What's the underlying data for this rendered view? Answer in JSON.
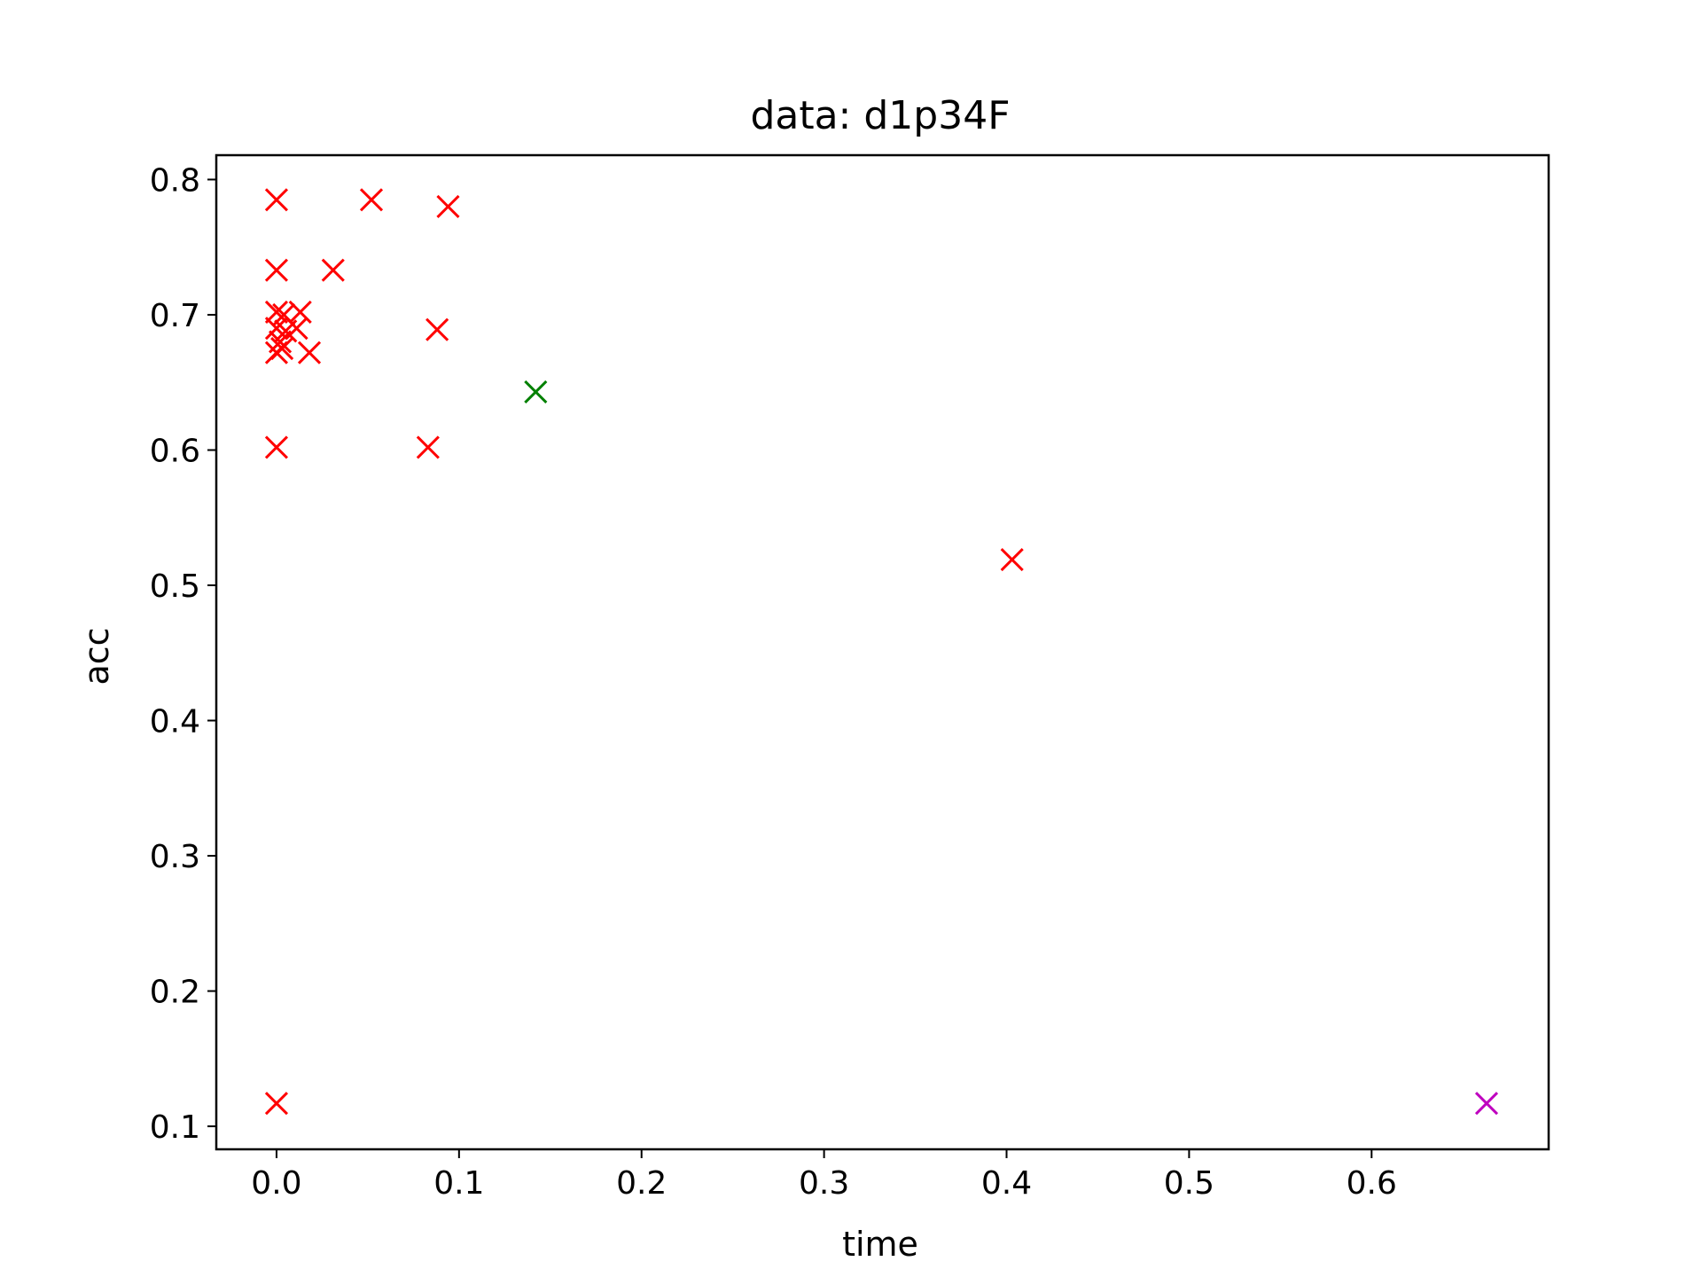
{
  "chart_data": {
    "type": "scatter",
    "title": "data: d1p34F",
    "xlabel": "time",
    "ylabel": "acc",
    "xlim": [
      -0.033,
      0.697
    ],
    "ylim": [
      0.083,
      0.818
    ],
    "xticks": [
      0.0,
      0.1,
      0.2,
      0.3,
      0.4,
      0.5,
      0.6
    ],
    "xtick_labels": [
      "0.0",
      "0.1",
      "0.2",
      "0.3",
      "0.4",
      "0.5",
      "0.6"
    ],
    "yticks": [
      0.1,
      0.2,
      0.3,
      0.4,
      0.5,
      0.6,
      0.7,
      0.8
    ],
    "ytick_labels": [
      "0.1",
      "0.2",
      "0.3",
      "0.4",
      "0.5",
      "0.6",
      "0.7",
      "0.8"
    ],
    "grid": false,
    "marker": "x",
    "series": [
      {
        "color": "#ff0000",
        "points": [
          [
            0.0,
            0.785
          ],
          [
            0.052,
            0.785
          ],
          [
            0.094,
            0.78
          ],
          [
            0.0,
            0.733
          ],
          [
            0.031,
            0.733
          ],
          [
            0.0,
            0.702
          ],
          [
            0.004,
            0.7
          ],
          [
            0.013,
            0.702
          ],
          [
            0.0,
            0.69
          ],
          [
            0.005,
            0.688
          ],
          [
            0.011,
            0.69
          ],
          [
            0.002,
            0.68
          ],
          [
            0.0,
            0.672
          ],
          [
            0.003,
            0.675
          ],
          [
            0.018,
            0.672
          ],
          [
            0.088,
            0.689
          ],
          [
            0.0,
            0.602
          ],
          [
            0.083,
            0.602
          ],
          [
            0.403,
            0.519
          ],
          [
            0.0,
            0.117
          ]
        ]
      },
      {
        "color": "#008000",
        "points": [
          [
            0.142,
            0.643
          ]
        ]
      },
      {
        "color": "#bf00bf",
        "points": [
          [
            0.663,
            0.117
          ]
        ]
      }
    ]
  }
}
